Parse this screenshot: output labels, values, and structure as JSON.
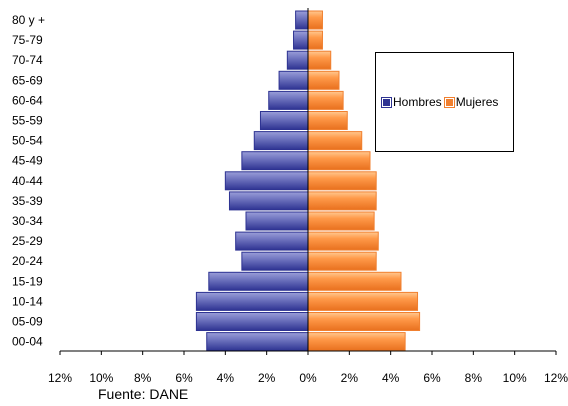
{
  "chart_data": {
    "type": "bar",
    "orientation": "horizontal",
    "subtype": "population-pyramid",
    "categories": [
      "80 y +",
      "75-79",
      "70-74",
      "65-69",
      "60-64",
      "55-59",
      "50-54",
      "45-49",
      "40-44",
      "35-39",
      "30-34",
      "25-29",
      "20-24",
      "15-19",
      "10-14",
      "05-09",
      "00-04"
    ],
    "series": [
      {
        "name": "Hombres",
        "color": "#2e3392",
        "values": [
          0.6,
          0.7,
          1.0,
          1.4,
          1.9,
          2.3,
          2.6,
          3.2,
          4.0,
          3.8,
          3.0,
          3.5,
          3.2,
          4.8,
          5.4,
          5.4,
          4.9
        ]
      },
      {
        "name": "Mujeres",
        "color": "#f08030",
        "values": [
          0.7,
          0.7,
          1.1,
          1.5,
          1.7,
          1.9,
          2.6,
          3.0,
          3.3,
          3.3,
          3.2,
          3.4,
          3.3,
          4.5,
          5.3,
          5.4,
          4.7
        ]
      }
    ],
    "xlim": [
      -12,
      12
    ],
    "x_ticks": [
      "12%",
      "10%",
      "8%",
      "6%",
      "4%",
      "2%",
      "0%",
      "2%",
      "4%",
      "6%",
      "8%",
      "10%",
      "12%"
    ],
    "legend_position": "right",
    "grid": false
  },
  "source_note": "Fuente: DANE"
}
